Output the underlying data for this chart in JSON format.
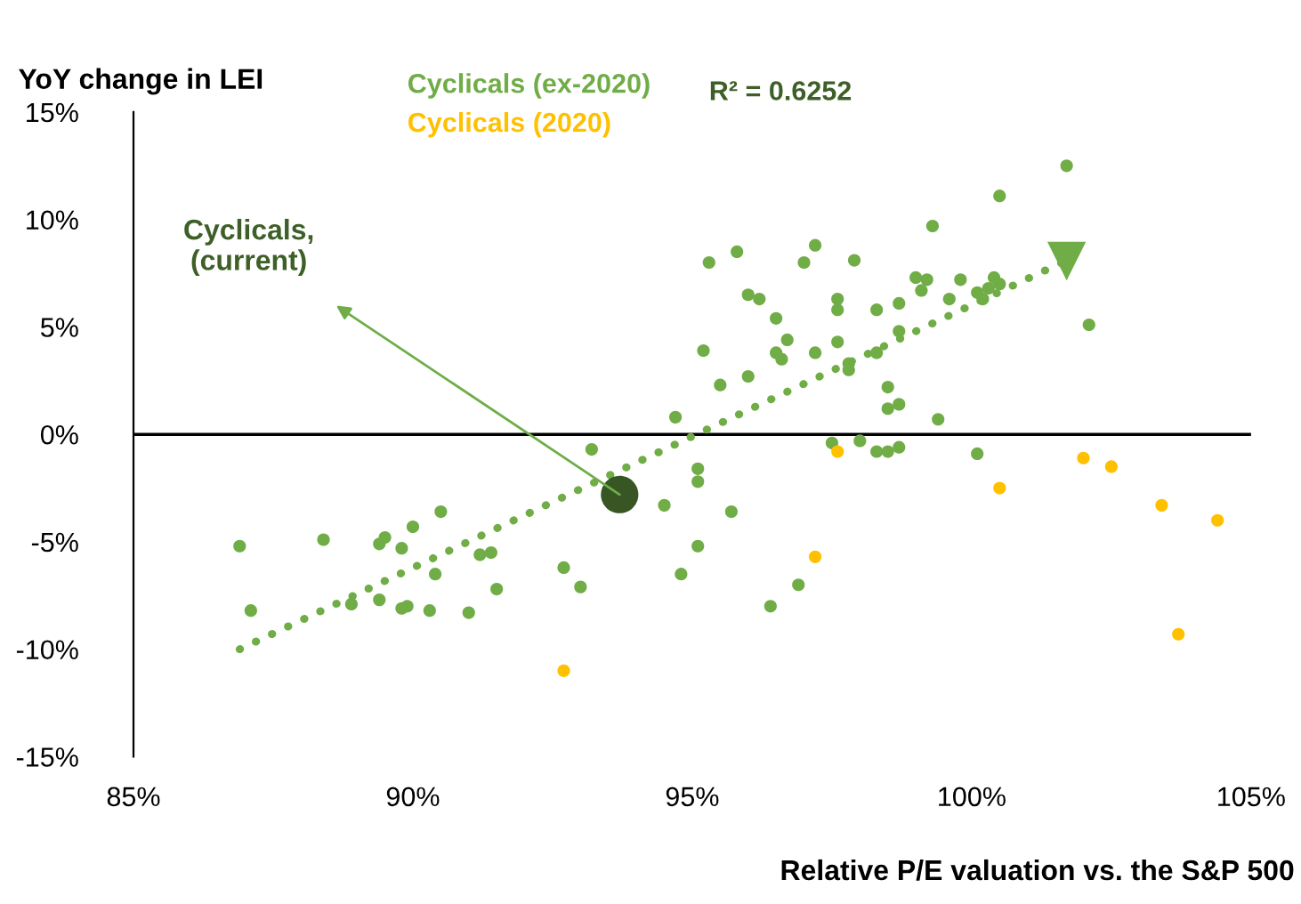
{
  "chart_data": {
    "type": "scatter",
    "ylabel": "YoY change in LEI",
    "xlabel": "Relative P/E valuation vs. the S&P 500",
    "xlim": [
      85,
      105
    ],
    "ylim": [
      -15,
      15
    ],
    "xticks": [
      {
        "value": 85,
        "label": "85%"
      },
      {
        "value": 90,
        "label": "90%"
      },
      {
        "value": 95,
        "label": "95%"
      },
      {
        "value": 100,
        "label": "100%"
      },
      {
        "value": 105,
        "label": "105%"
      }
    ],
    "yticks": [
      {
        "value": -15,
        "label": "-15%"
      },
      {
        "value": -10,
        "label": "-10%"
      },
      {
        "value": -5,
        "label": "-5%"
      },
      {
        "value": 0,
        "label": "0%"
      },
      {
        "value": 5,
        "label": "5%"
      },
      {
        "value": 10,
        "label": "10%"
      },
      {
        "value": 15,
        "label": "15%"
      }
    ],
    "grid": false,
    "legend": "top",
    "marker": "circle",
    "ref_lines": [
      {
        "axis": "y",
        "value": 0,
        "color": "#000000"
      }
    ],
    "annotations": [
      "R² = 0.6252",
      "Cyclicals,\n(current)"
    ],
    "series": [
      {
        "name": "Cyclicals (ex-2020)",
        "color": "#70ad47",
        "x": [
          86.9,
          87.1,
          88.4,
          89.5,
          89.4,
          90.0,
          89.8,
          90.5,
          90.4,
          88.9,
          89.4,
          89.8,
          89.9,
          90.3,
          91.0,
          91.2,
          91.4,
          91.5,
          92.7,
          93.0,
          93.2,
          94.5,
          94.7,
          95.1,
          95.1,
          95.1,
          94.8,
          101.7,
          100.5,
          99.3,
          95.3,
          95.8,
          97.2,
          97.0,
          97.9,
          96.0,
          96.2,
          96.5,
          95.2,
          96.7,
          96.5,
          96.6,
          97.2,
          97.6,
          97.6,
          97.6,
          98.3,
          98.7,
          99.0,
          99.2,
          99.1,
          99.6,
          99.8,
          98.7,
          98.3,
          97.8,
          97.8,
          95.5,
          96.0,
          98.5,
          98.5,
          98.7,
          99.4,
          100.1,
          100.2,
          100.3,
          100.4,
          100.5,
          102.1,
          97.5,
          98.0,
          98.3,
          98.5,
          98.7,
          100.1,
          95.7,
          96.9,
          96.4
        ],
        "values": [
          -5.2,
          -8.2,
          -4.9,
          -4.8,
          -5.1,
          -4.3,
          -5.3,
          -3.6,
          -6.5,
          -7.9,
          -7.7,
          -8.1,
          -8.0,
          -8.2,
          -8.3,
          -5.6,
          -5.5,
          -7.2,
          -6.2,
          -7.1,
          -0.7,
          -3.3,
          0.8,
          -1.6,
          -2.2,
          -5.2,
          -6.5,
          12.5,
          11.1,
          9.7,
          8.0,
          8.5,
          8.8,
          8.0,
          8.1,
          6.5,
          6.3,
          5.4,
          3.9,
          4.4,
          3.8,
          3.5,
          3.8,
          4.3,
          6.3,
          5.8,
          5.8,
          6.1,
          7.3,
          7.2,
          6.7,
          6.3,
          7.2,
          4.8,
          3.8,
          3.3,
          3.0,
          2.3,
          2.7,
          2.2,
          1.2,
          1.4,
          0.7,
          6.6,
          6.3,
          6.8,
          7.3,
          7.0,
          5.1,
          -0.4,
          -0.3,
          -0.8,
          -0.8,
          -0.6,
          -0.9,
          -3.6,
          -7.0,
          -8.0
        ]
      },
      {
        "name": "Cyclicals (2020)",
        "color": "#ffc000",
        "x": [
          92.7,
          97.6,
          97.2,
          100.5,
          102.0,
          102.5,
          103.4,
          104.4,
          103.7
        ],
        "values": [
          -11.0,
          -0.8,
          -5.7,
          -2.5,
          -1.1,
          -1.5,
          -3.3,
          -4.0,
          -9.3
        ]
      },
      {
        "color": "#375623",
        "x": [
          93.7
        ],
        "values": [
          -2.8
        ]
      },
      {
        "type": "line",
        "line_style": "dotted",
        "marker": "triangle",
        "color": "#70ad47",
        "x": [
          86.9,
          101.7
        ],
        "values": [
          -10.0,
          8.1
        ]
      }
    ]
  }
}
